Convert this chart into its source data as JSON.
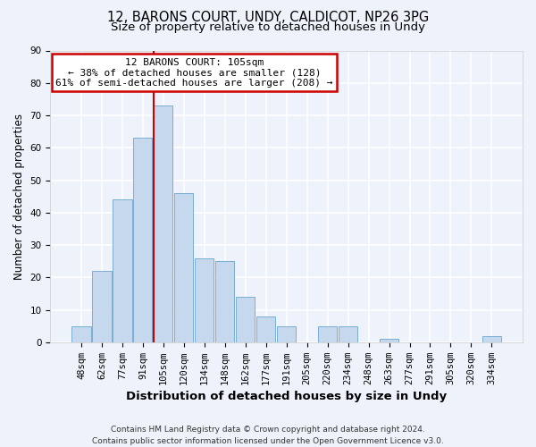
{
  "title": "12, BARONS COURT, UNDY, CALDICOT, NP26 3PG",
  "subtitle": "Size of property relative to detached houses in Undy",
  "xlabel": "Distribution of detached houses by size in Undy",
  "ylabel": "Number of detached properties",
  "bar_labels": [
    "48sqm",
    "62sqm",
    "77sqm",
    "91sqm",
    "105sqm",
    "120sqm",
    "134sqm",
    "148sqm",
    "162sqm",
    "177sqm",
    "191sqm",
    "205sqm",
    "220sqm",
    "234sqm",
    "248sqm",
    "263sqm",
    "277sqm",
    "291sqm",
    "305sqm",
    "320sqm",
    "334sqm"
  ],
  "bar_values": [
    5,
    22,
    44,
    63,
    73,
    46,
    26,
    25,
    14,
    8,
    5,
    0,
    5,
    5,
    0,
    1,
    0,
    0,
    0,
    0,
    2
  ],
  "bar_color": "#c5d8ed",
  "bar_edge_color": "#7baed4",
  "vline_x_index": 4,
  "vline_color": "#cc0000",
  "annotation_title": "12 BARONS COURT: 105sqm",
  "annotation_line1": "← 38% of detached houses are smaller (128)",
  "annotation_line2": "61% of semi-detached houses are larger (208) →",
  "annotation_box_facecolor": "#ffffff",
  "annotation_box_edgecolor": "#cc0000",
  "ylim": [
    0,
    90
  ],
  "yticks": [
    0,
    10,
    20,
    30,
    40,
    50,
    60,
    70,
    80,
    90
  ],
  "footer_line1": "Contains HM Land Registry data © Crown copyright and database right 2024.",
  "footer_line2": "Contains public sector information licensed under the Open Government Licence v3.0.",
  "bg_color": "#eef2fa",
  "grid_color": "#ffffff",
  "title_fontsize": 10.5,
  "subtitle_fontsize": 9.5,
  "xlabel_fontsize": 9.5,
  "ylabel_fontsize": 8.5,
  "tick_fontsize": 7.5,
  "annotation_fontsize": 8,
  "footer_fontsize": 6.5
}
